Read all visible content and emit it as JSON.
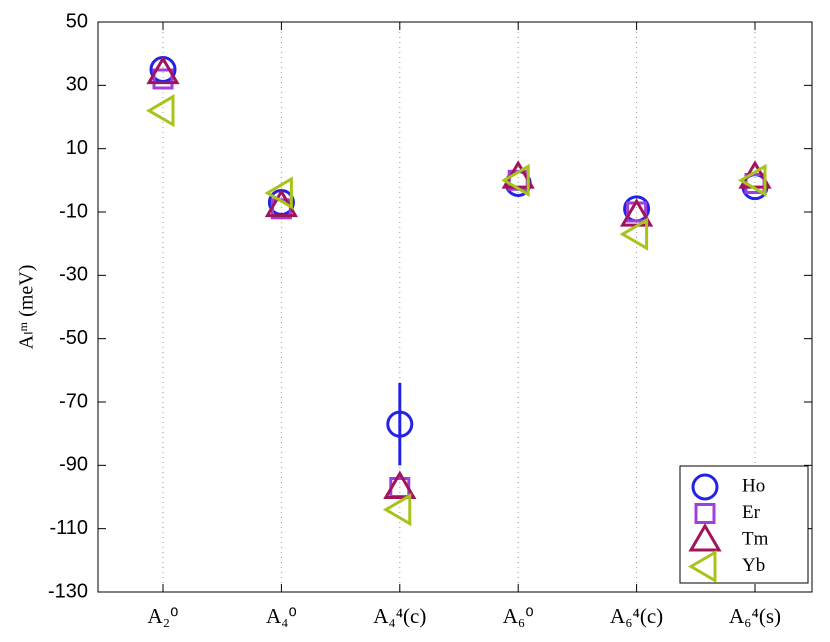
{
  "chart_data": {
    "type": "scatter",
    "y_label": "Aₗᵐ (meV)",
    "categories": [
      "A₂⁰",
      "A₄⁰",
      "A₄⁴(c)",
      "A₆⁰",
      "A₆⁴(c)",
      "A₆⁴(s)"
    ],
    "ylim": [
      -130,
      50
    ],
    "yticks": [
      -130,
      -110,
      -90,
      -70,
      -50,
      -30,
      -10,
      10,
      30,
      50
    ],
    "grid": "categories",
    "legend_position": "lower right",
    "series": [
      {
        "name": "Ho",
        "color": "#2323e6",
        "marker": "circle",
        "values": [
          35,
          -7,
          -77,
          -1,
          -9,
          -2
        ],
        "errors": [
          null,
          null,
          13,
          null,
          null,
          null
        ]
      },
      {
        "name": "Er",
        "color": "#a040dc",
        "marker": "square",
        "values": [
          32,
          -9,
          -97,
          0,
          -10,
          -1
        ]
      },
      {
        "name": "Tm",
        "color": "#a0155a",
        "marker": "triangle-up",
        "values": [
          34,
          -8,
          -97,
          1,
          -11,
          1
        ]
      },
      {
        "name": "Yb",
        "color": "#a8c41a",
        "marker": "triangle-left",
        "values": [
          22,
          -4,
          -104,
          0,
          -17,
          0
        ]
      }
    ]
  }
}
